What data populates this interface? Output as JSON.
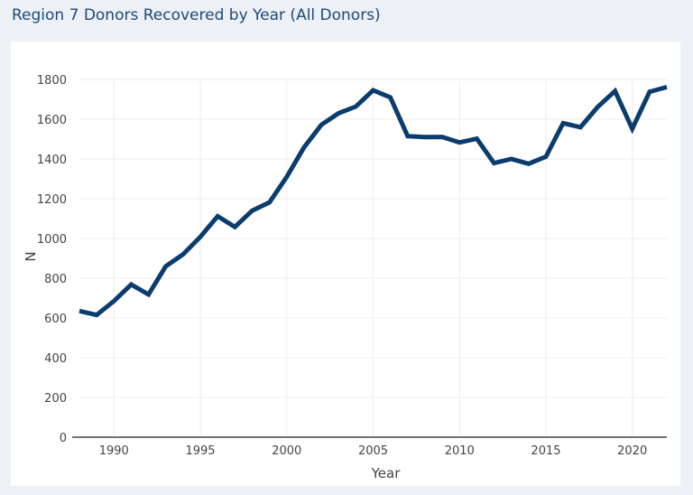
{
  "page": {
    "title": "Region 7 Donors Recovered by Year (All Donors)",
    "background": "#edf0f4",
    "title_color": "#1d4a7a"
  },
  "chart_data": {
    "type": "line",
    "xlabel": "Year",
    "ylabel": "N",
    "xlim": [
      1988,
      2022
    ],
    "ylim": [
      0,
      1800
    ],
    "x_ticks": [
      1990,
      1995,
      2000,
      2005,
      2010,
      2015,
      2020
    ],
    "y_ticks": [
      0,
      200,
      400,
      600,
      800,
      1000,
      1200,
      1400,
      1600,
      1800
    ],
    "grid": true,
    "line_color": "#0b3c6e",
    "series": [
      {
        "x": [
          1988,
          1989,
          1990,
          1991,
          1992,
          1993,
          1994,
          1995,
          1996,
          1997,
          1998,
          1999,
          2000,
          2001,
          2002,
          2003,
          2004,
          2005,
          2006,
          2007,
          2008,
          2009,
          2010,
          2011,
          2012,
          2013,
          2014,
          2015,
          2016,
          2017,
          2018,
          2019,
          2020,
          2021,
          2022
        ],
        "y": [
          635,
          615,
          685,
          768,
          718,
          860,
          920,
          1008,
          1112,
          1058,
          1140,
          1182,
          1310,
          1458,
          1572,
          1630,
          1664,
          1746,
          1710,
          1515,
          1510,
          1511,
          1483,
          1502,
          1379,
          1400,
          1376,
          1412,
          1580,
          1560,
          1662,
          1742,
          1552,
          1738,
          1762
        ]
      }
    ]
  }
}
